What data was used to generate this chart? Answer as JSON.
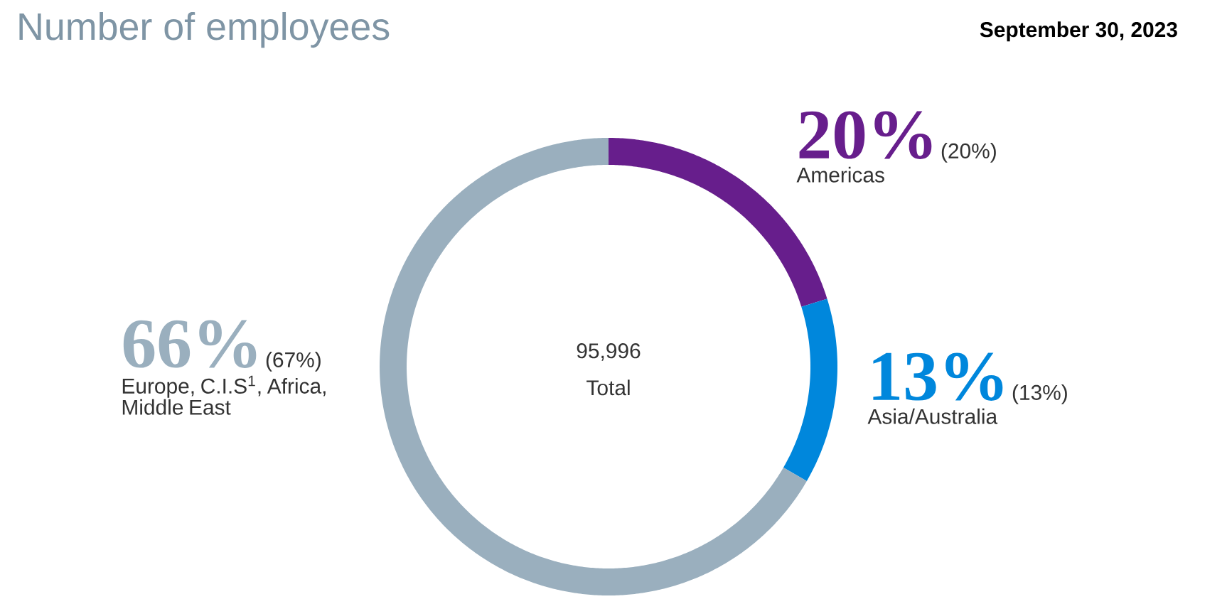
{
  "chart_data": {
    "type": "donut",
    "title": "Number of employees",
    "subtitle": "September 30, 2023",
    "categories": [
      "Americas",
      "Asia/Australia",
      "Europe, C.I.S$^{1}$, Africa, Middle East"
    ],
    "values": [
      20,
      13,
      66
    ],
    "value_labels": [
      "20%",
      "13%",
      "66%"
    ],
    "colors": [
      "#671e8c",
      "#0087dc",
      "#9aafbe"
    ],
    "annotations": [
      "(20%)",
      "(13%)",
      "(67%)",
      "95,996",
      "Total"
    ]
  }
}
